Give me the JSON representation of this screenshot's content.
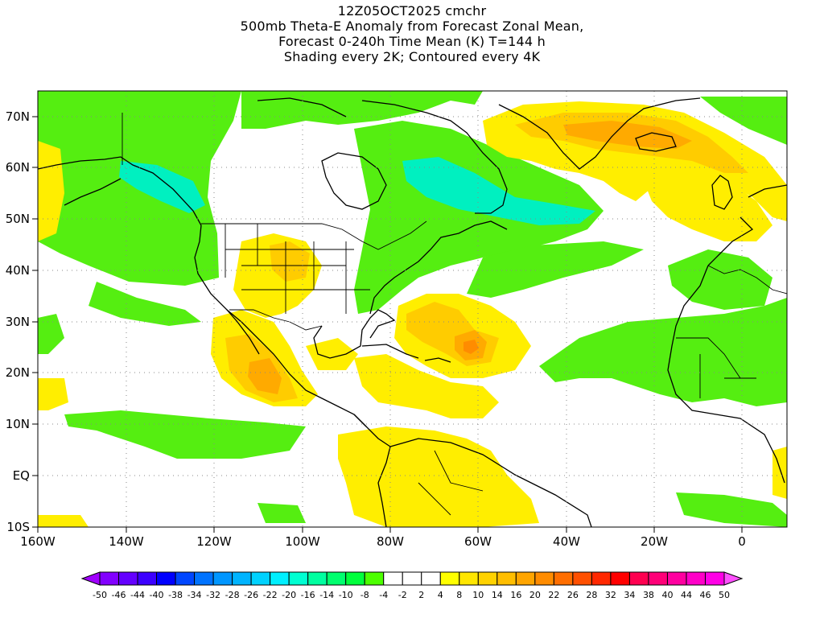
{
  "title": {
    "line1": "12Z05OCT2025 cmchr",
    "line2": "500mb Theta-E Anomaly from Forecast Zonal Mean,",
    "line3": "Forecast 0-240h Time Mean (K) T=144 h",
    "line4": "Shading every 2K; Contoured every 4K"
  },
  "axes": {
    "lon_ticks": [
      "160W",
      "140W",
      "120W",
      "100W",
      "80W",
      "60W",
      "40W",
      "20W",
      "0"
    ],
    "lat_ticks": [
      "70N",
      "60N",
      "50N",
      "40N",
      "30N",
      "20N",
      "10N",
      "EQ",
      "10S"
    ]
  },
  "map_range": {
    "lon": [
      -160,
      10
    ],
    "lat": [
      -10,
      75
    ]
  },
  "colorbar": {
    "labels": [
      "-50",
      "-46",
      "-44",
      "-40",
      "-38",
      "-34",
      "-32",
      "-28",
      "-26",
      "-22",
      "-20",
      "-16",
      "-14",
      "-10",
      "-8",
      "-4",
      "-2",
      "2",
      "4",
      "8",
      "10",
      "14",
      "16",
      "20",
      "22",
      "26",
      "28",
      "32",
      "34",
      "38",
      "40",
      "44",
      "46",
      "50"
    ],
    "colors": [
      "#a000ff",
      "#8200ff",
      "#6400ff",
      "#3c00ff",
      "#0000ff",
      "#0046ff",
      "#0073ff",
      "#0096ff",
      "#00b4ff",
      "#00d2ff",
      "#00f0ff",
      "#00ffd2",
      "#00ffa0",
      "#00ff6e",
      "#00ff3c",
      "#4cff00",
      "#ffffff",
      "#ffffff",
      "#ffffff",
      "#ffff00",
      "#ffe600",
      "#ffd200",
      "#ffbe00",
      "#ffa500",
      "#ff8c00",
      "#ff6e00",
      "#ff5000",
      "#ff2800",
      "#ff0000",
      "#ff0050",
      "#ff0078",
      "#ff00a0",
      "#ff00c8",
      "#ff00e6",
      "#ff50ff"
    ]
  },
  "colors": {
    "green": "#55ee11",
    "cyan": "#00f0c0",
    "yellow": "#ffee00",
    "gold": "#ffcc00",
    "orange": "#ffaa00"
  }
}
